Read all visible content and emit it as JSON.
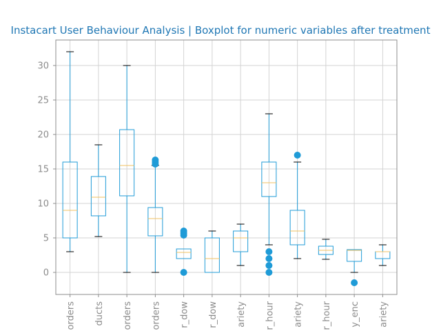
{
  "chart_data": {
    "type": "boxplot",
    "title": "Instacart User Behaviour Analysis | Boxplot for numeric variables after treatment",
    "xlabel": "",
    "ylabel": "",
    "ylim": [
      -3.2,
      33.7
    ],
    "yticks": [
      0,
      5,
      10,
      15,
      20,
      25,
      30
    ],
    "grid": true,
    "colors": {
      "box": "#1f9bd7",
      "median": "#f0c060",
      "title": "#1f77b4",
      "tick": "#8c8c8c",
      "grid": "#d3d3d3"
    },
    "categories": [
      "orders",
      "ducts",
      "orders",
      "orders",
      "r_dow",
      "r_dow",
      "ariety",
      "r_hour",
      "ariety",
      "r_hour",
      "y_enc",
      "ariety"
    ],
    "boxes": [
      {
        "whislo": 3.0,
        "q1": 5.0,
        "med": 9.0,
        "q3": 16.0,
        "whishi": 32.0,
        "fliers": []
      },
      {
        "whislo": 5.2,
        "q1": 8.2,
        "med": 10.9,
        "q3": 13.9,
        "whishi": 18.5,
        "fliers": []
      },
      {
        "whislo": 0.0,
        "q1": 11.1,
        "med": 15.5,
        "q3": 20.7,
        "whishi": 30.0,
        "fliers": []
      },
      {
        "whislo": 0.0,
        "q1": 5.3,
        "med": 7.8,
        "q3": 9.4,
        "whishi": 15.5,
        "fliers": [
          15.7,
          16.0,
          16.3
        ]
      },
      {
        "whislo": 2.0,
        "q1": 2.0,
        "med": 2.9,
        "q3": 3.4,
        "whishi": 3.4,
        "fliers": [
          0.0,
          5.4,
          5.7,
          6.0
        ]
      },
      {
        "whislo": 0.0,
        "q1": 0.0,
        "med": 2.0,
        "q3": 5.0,
        "whishi": 6.0,
        "fliers": []
      },
      {
        "whislo": 1.0,
        "q1": 3.0,
        "med": 5.0,
        "q3": 6.0,
        "whishi": 7.0,
        "fliers": []
      },
      {
        "whislo": 4.0,
        "q1": 11.0,
        "med": 13.0,
        "q3": 16.0,
        "whishi": 23.0,
        "fliers": [
          0.0,
          1.0,
          2.0,
          3.0
        ]
      },
      {
        "whislo": 2.0,
        "q1": 4.0,
        "med": 6.0,
        "q3": 9.0,
        "whishi": 16.0,
        "fliers": [
          17.0
        ]
      },
      {
        "whislo": 1.9,
        "q1": 2.6,
        "med": 3.2,
        "q3": 3.8,
        "whishi": 4.8,
        "fliers": []
      },
      {
        "whislo": 0.0,
        "q1": 1.6,
        "med": 3.2,
        "q3": 3.3,
        "whishi": 3.3,
        "fliers": [
          -1.5
        ]
      },
      {
        "whislo": 1.0,
        "q1": 2.0,
        "med": 3.0,
        "q3": 3.0,
        "whishi": 4.0,
        "fliers": []
      }
    ]
  }
}
